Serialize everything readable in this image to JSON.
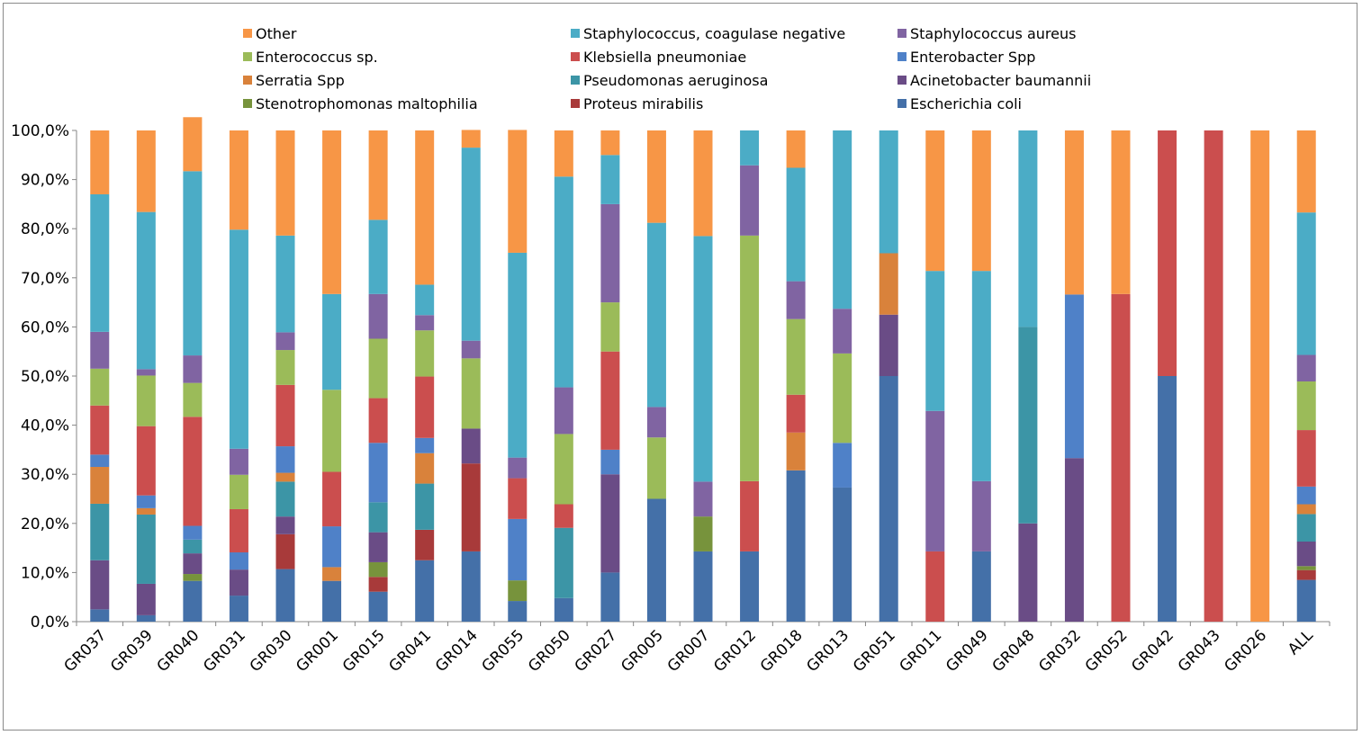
{
  "chart_data": {
    "type": "bar",
    "stacked": "percent",
    "title": "",
    "xlabel": "",
    "ylabel": "",
    "ylim": [
      0,
      100
    ],
    "y_ticks": [
      "0,0%",
      "10,0%",
      "20,0%",
      "30,0%",
      "40,0%",
      "50,0%",
      "60,0%",
      "70,0%",
      "80,0%",
      "90,0%",
      "100,0%"
    ],
    "grid": false,
    "legend_position": "top",
    "categories": [
      "GR037",
      "GR039",
      "GR040",
      "GR031",
      "GR030",
      "GR001",
      "GR015",
      "GR041",
      "GR014",
      "GR055",
      "GR050",
      "GR027",
      "GR005",
      "GR007",
      "GR012",
      "GR018",
      "GR013",
      "GR051",
      "GR011",
      "GR049",
      "GR048",
      "GR032",
      "GR052",
      "GR042",
      "GR043",
      "GR026",
      "ALL"
    ],
    "legend_order": [
      "Other",
      "Staphylococcus, coagulase negative",
      "Staphylococcus aureus",
      "Enterococcus sp.",
      "Klebsiella pneumoniae",
      "Enterobacter Spp",
      "Serratia Spp",
      "Pseudomonas aeruginosa",
      "Acinetobacter baumannii",
      "Stenotrophomonas maltophilia",
      "Proteus mirabilis",
      "Escherichia coli"
    ],
    "series": [
      {
        "name": "Escherichia coli",
        "color": "#4470A8",
        "values": [
          2.5,
          1.3,
          8.3,
          5.3,
          10.7,
          8.3,
          6.1,
          12.5,
          14.3,
          4.2,
          4.8,
          10.0,
          25.0,
          14.3,
          14.3,
          30.8,
          27.3,
          50.0,
          0,
          14.3,
          0,
          0,
          0,
          50.0,
          0,
          0,
          8.5
        ]
      },
      {
        "name": "Proteus mirabilis",
        "color": "#A83A3A",
        "values": [
          0,
          0,
          0,
          0,
          7.1,
          0,
          3.0,
          6.2,
          17.9,
          0,
          0,
          0,
          0,
          0,
          0,
          0,
          0,
          0,
          0,
          0,
          0,
          0,
          0,
          0,
          0,
          0,
          2.0
        ]
      },
      {
        "name": "Stenotrophomonas maltophilia",
        "color": "#77933C",
        "values": [
          0,
          0,
          1.4,
          0,
          0,
          0,
          3.0,
          0,
          0,
          4.2,
          0,
          0,
          0,
          7.1,
          0,
          0,
          0,
          0,
          0,
          0,
          0,
          0,
          0,
          0,
          0,
          0,
          0.8
        ]
      },
      {
        "name": "Acinetobacter baumannii",
        "color": "#6A4C86",
        "values": [
          10.0,
          6.4,
          4.2,
          5.3,
          3.6,
          0,
          6.1,
          0,
          7.1,
          0,
          0,
          20.0,
          0,
          0,
          0,
          0,
          0,
          12.5,
          0,
          0,
          20.0,
          33.3,
          0,
          0,
          0,
          0,
          5.0
        ]
      },
      {
        "name": "Pseudomonas aeruginosa",
        "color": "#3C95A6",
        "values": [
          11.5,
          14.1,
          2.8,
          0,
          7.1,
          0,
          6.1,
          9.4,
          0,
          0,
          14.3,
          0,
          0,
          0,
          0,
          0,
          0,
          0,
          0,
          0,
          40.0,
          0,
          0,
          0,
          0,
          0,
          5.6
        ]
      },
      {
        "name": "Serratia Spp",
        "color": "#D9823B",
        "values": [
          7.5,
          1.3,
          0,
          0,
          1.8,
          2.8,
          0,
          6.2,
          0,
          0,
          0,
          0,
          0,
          0,
          0,
          7.7,
          0,
          12.5,
          0,
          0,
          0,
          0,
          0,
          0,
          0,
          0,
          2.0
        ]
      },
      {
        "name": "Enterobacter Spp",
        "color": "#4F81C8",
        "values": [
          2.5,
          2.6,
          2.8,
          3.5,
          5.4,
          8.3,
          12.1,
          3.1,
          0,
          12.5,
          0,
          5.0,
          0,
          0,
          0,
          0,
          9.1,
          0,
          0,
          0,
          0,
          33.3,
          0,
          0,
          0,
          0,
          3.6
        ]
      },
      {
        "name": "Klebsiella pneumoniae",
        "color": "#CB4E4E",
        "values": [
          10.0,
          14.1,
          22.2,
          8.8,
          12.5,
          11.1,
          9.1,
          12.5,
          0,
          8.3,
          4.8,
          20.0,
          0,
          0,
          14.3,
          7.7,
          0,
          0,
          14.3,
          0,
          0,
          0,
          66.7,
          50.0,
          100,
          0,
          11.5
        ]
      },
      {
        "name": "Enterococcus sp.",
        "color": "#9BBB59",
        "values": [
          7.5,
          10.3,
          6.9,
          7.0,
          7.1,
          16.7,
          12.1,
          9.4,
          14.3,
          0,
          14.3,
          10.0,
          12.5,
          0,
          50.0,
          15.4,
          18.2,
          0,
          0,
          0,
          0,
          0,
          0,
          0,
          0,
          0,
          9.9
        ]
      },
      {
        "name": "Staphylococcus aureus",
        "color": "#8064A2",
        "values": [
          7.5,
          1.3,
          5.6,
          5.3,
          3.6,
          0,
          9.1,
          3.1,
          3.6,
          4.2,
          9.5,
          20.0,
          6.2,
          7.1,
          14.3,
          7.7,
          9.1,
          0,
          28.6,
          14.3,
          0,
          0,
          0,
          0,
          0,
          0,
          5.4
        ]
      },
      {
        "name": "Staphylococcus, coagulase negative",
        "color": "#4BACC6",
        "values": [
          28.0,
          32.0,
          37.5,
          44.6,
          19.7,
          19.5,
          15.1,
          6.2,
          39.3,
          41.7,
          42.9,
          10.0,
          37.5,
          50.0,
          7.1,
          23.1,
          36.3,
          25.0,
          28.5,
          42.8,
          40.0,
          0,
          0,
          0,
          0,
          0,
          29.0
        ]
      },
      {
        "name": "Other",
        "color": "#F79646",
        "values": [
          13.0,
          16.6,
          11.0,
          20.2,
          21.4,
          33.3,
          18.2,
          31.4,
          3.6,
          25.0,
          9.4,
          5.0,
          18.8,
          21.5,
          0,
          7.6,
          0,
          0,
          28.6,
          28.6,
          0,
          33.4,
          33.3,
          0,
          0,
          100,
          16.7
        ]
      }
    ]
  }
}
